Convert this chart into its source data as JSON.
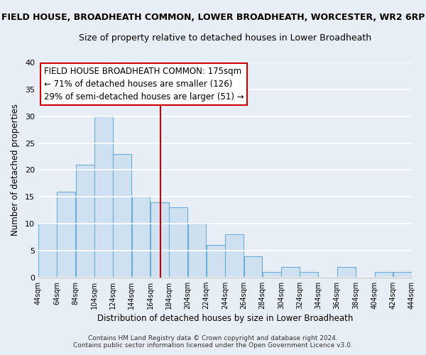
{
  "title_main": "FIELD HOUSE, BROADHEATH COMMON, LOWER BROADHEATH, WORCESTER, WR2 6RP",
  "title_sub": "Size of property relative to detached houses in Lower Broadheath",
  "xlabel": "Distribution of detached houses by size in Lower Broadheath",
  "ylabel": "Number of detached properties",
  "bin_edges": [
    44,
    64,
    84,
    104,
    124,
    144,
    164,
    184,
    204,
    224,
    244,
    264,
    284,
    304,
    324,
    344,
    364,
    384,
    404,
    424,
    444
  ],
  "counts": [
    10,
    16,
    21,
    30,
    23,
    15,
    14,
    13,
    10,
    6,
    8,
    4,
    1,
    2,
    1,
    0,
    2,
    0,
    1,
    1
  ],
  "bar_color": "#cfe0f0",
  "bar_edge_color": "#6aaed6",
  "vline_x": 175,
  "vline_color": "#cc0000",
  "ylim": [
    0,
    40
  ],
  "yticks": [
    0,
    5,
    10,
    15,
    20,
    25,
    30,
    35,
    40
  ],
  "xtick_labels": [
    "44sqm",
    "64sqm",
    "84sqm",
    "104sqm",
    "124sqm",
    "144sqm",
    "164sqm",
    "184sqm",
    "204sqm",
    "224sqm",
    "244sqm",
    "264sqm",
    "284sqm",
    "304sqm",
    "324sqm",
    "344sqm",
    "364sqm",
    "384sqm",
    "404sqm",
    "424sqm",
    "444sqm"
  ],
  "annotation_title": "FIELD HOUSE BROADHEATH COMMON: 175sqm",
  "annotation_line1": "← 71% of detached houses are smaller (126)",
  "annotation_line2": "29% of semi-detached houses are larger (51) →",
  "annotation_box_color": "#ffffff",
  "annotation_box_edge": "#cc0000",
  "footnote1": "Contains HM Land Registry data © Crown copyright and database right 2024.",
  "footnote2": "Contains public sector information licensed under the Open Government Licence v3.0.",
  "bg_color": "#e8eef5",
  "plot_bg_color": "#e8eef5",
  "grid_color": "#ffffff",
  "title_main_fontsize": 9.0,
  "title_sub_fontsize": 9.0,
  "xlabel_fontsize": 8.5,
  "ylabel_fontsize": 8.5,
  "xtick_fontsize": 7.0,
  "ytick_fontsize": 8.0,
  "footnote_fontsize": 6.5,
  "ann_fontsize": 8.5
}
